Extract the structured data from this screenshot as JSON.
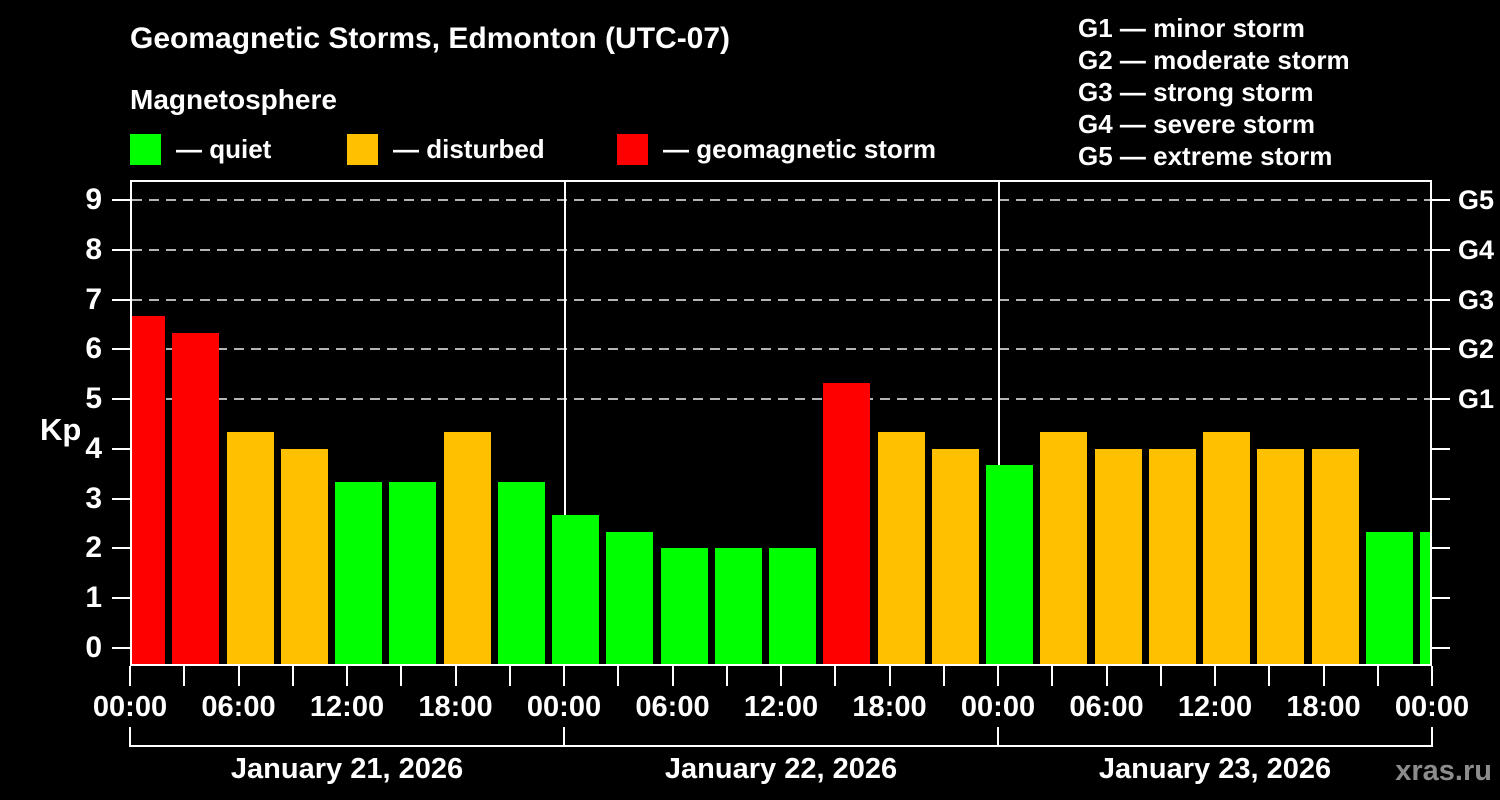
{
  "header": {
    "title": "Geomagnetic Storms, Edmonton (UTC-07)",
    "subtitle": "Magnetosphere",
    "legend": [
      {
        "label": "— quiet",
        "color": "#00FF00"
      },
      {
        "label": "— disturbed",
        "color": "#FFC000"
      },
      {
        "label": "— geomagnetic storm",
        "color": "#FF0000"
      }
    ],
    "storm_scale_legend": [
      "G1 — minor storm",
      "G2 — moderate storm",
      "G3 — strong storm",
      "G4 — severe storm",
      "G5 — extreme storm"
    ]
  },
  "watermark": "xras.ru",
  "chart_data": {
    "type": "bar",
    "title": "Geomagnetic Storms, Edmonton (UTC-07)",
    "subtitle": "Magnetosphere",
    "ylabel": "Kp",
    "ylim": [
      0,
      9
    ],
    "y_ticks": [
      0,
      1,
      2,
      3,
      4,
      5,
      6,
      7,
      8,
      9
    ],
    "gridlines_at": [
      5,
      6,
      7,
      8,
      9
    ],
    "grid": "dashed-horizontal",
    "legend_position": "top",
    "right_axis_labels": [
      {
        "kp": 5,
        "label": "G1"
      },
      {
        "kp": 6,
        "label": "G2"
      },
      {
        "kp": 7,
        "label": "G3"
      },
      {
        "kp": 8,
        "label": "G4"
      },
      {
        "kp": 9,
        "label": "G5"
      }
    ],
    "x_tick_labels": [
      "00:00",
      "06:00",
      "12:00",
      "18:00",
      "00:00",
      "06:00",
      "12:00",
      "18:00",
      "00:00",
      "06:00",
      "12:00",
      "18:00",
      "00:00"
    ],
    "hours_per_bar": 3,
    "days": [
      {
        "date": "January 21, 2026",
        "values": [
          6.67,
          6.33,
          4.33,
          4.0,
          3.33,
          3.33,
          4.33,
          3.33
        ]
      },
      {
        "date": "January 22, 2026",
        "values": [
          2.67,
          2.33,
          2.0,
          2.0,
          2.0,
          5.33,
          4.33,
          4.0
        ]
      },
      {
        "date": "January 23, 2026",
        "values": [
          3.67,
          4.33,
          4.0,
          4.0,
          4.33,
          4.0,
          4.0,
          2.33
        ]
      }
    ],
    "next_day_partial_value": 2.33,
    "colors": {
      "quiet": "#00FF00",
      "disturbed": "#FFC000",
      "storm": "#FF0000"
    },
    "thresholds": {
      "disturbed_min": 4,
      "storm_min": 5
    }
  }
}
